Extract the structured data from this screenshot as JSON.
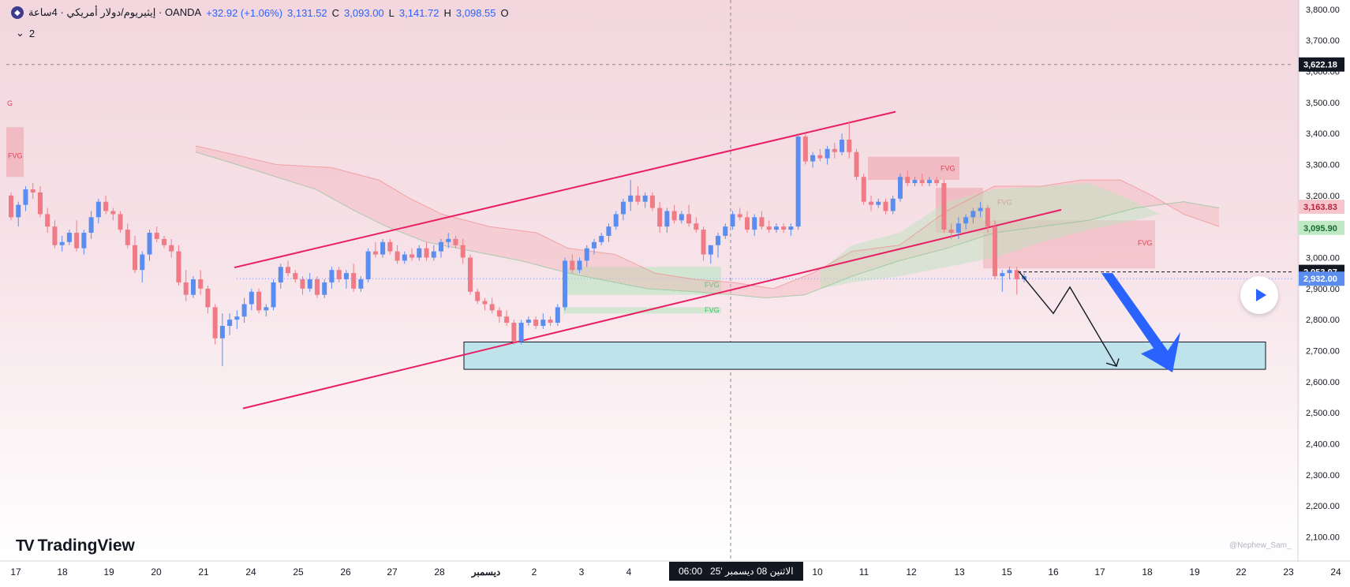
{
  "legend": {
    "symbol_title": "إيثيريوم/دولار أمريكي · 4ساعة · OANDA",
    "coin_icon": "ethereum-icon",
    "change": "+32.92 (+1.06%)",
    "close": "3,131.52",
    "close_key": "C",
    "low": "3,093.00",
    "low_key": "L",
    "high": "3,141.72",
    "high_key": "H",
    "open": "3,098.55",
    "open_key": "O"
  },
  "indicator_toggle": {
    "label": "2",
    "icon": "chevron-down-icon"
  },
  "brand": {
    "logo_mark": "17",
    "name": "TradingView"
  },
  "watermark": "@Nephew_Sam_",
  "crosshair_date": "الاثنين 08 ديسمبر '25",
  "crosshair_time": "06:00",
  "colors": {
    "up": "#5b8def",
    "down": "#ee7b86",
    "channel": "#e91e63",
    "zone_fill": "#bfe3ea",
    "arrow": "#2962ff",
    "cloud_red": "#f4b6b8",
    "cloud_green": "#c9e9cc"
  },
  "chart_data": {
    "type": "candlestick",
    "symbol": "ETH/USD",
    "timeframe": "4h",
    "ylim": [
      2025,
      3830
    ],
    "y_ticks": [
      2100,
      2200,
      2300,
      2400,
      2500,
      2600,
      2700,
      2800,
      2900,
      3000,
      3100,
      3200,
      3300,
      3400,
      3500,
      3600,
      3700,
      3800
    ],
    "y_tick_labels": [
      "2,100.00",
      "2,200.00",
      "2,300.00",
      "2,400.00",
      "2,500.00",
      "2,600.00",
      "2,700.00",
      "2,800.00",
      "2,900.00",
      "3,000.00",
      "3,100.00",
      "3,200.00",
      "3,300.00",
      "3,400.00",
      "3,500.00",
      "3,600.00",
      "3,700.00",
      "3,800.00"
    ],
    "x_labels": [
      "17",
      "18",
      "19",
      "20",
      "21",
      "24",
      "25",
      "26",
      "27",
      "28",
      "ديسمبر",
      "2",
      "3",
      "4",
      "10",
      "11",
      "12",
      "13",
      "15",
      "16",
      "17",
      "18",
      "19",
      "22",
      "23",
      "24"
    ],
    "price_labels": [
      {
        "value": 3622.18,
        "label": "3,622.18",
        "style": "dark"
      },
      {
        "value": 3163.83,
        "label": "3,163.83",
        "style": "red"
      },
      {
        "value": 3095.9,
        "label": "3,095.90",
        "style": "green"
      },
      {
        "value": 2953.97,
        "label": "2,953.97",
        "style": "dark"
      },
      {
        "value": 2932.0,
        "label": "2,932.00",
        "style": "blue"
      }
    ],
    "fvg_labels": [
      "FVG",
      "FVG",
      "FVG",
      "FVG",
      "FVG",
      "FVG"
    ],
    "candles": [
      [
        3200,
        3210,
        3120,
        3130
      ],
      [
        3130,
        3180,
        3100,
        3170
      ],
      [
        3170,
        3230,
        3150,
        3220
      ],
      [
        3220,
        3240,
        3190,
        3210
      ],
      [
        3210,
        3230,
        3130,
        3140
      ],
      [
        3140,
        3160,
        3080,
        3100
      ],
      [
        3100,
        3120,
        3030,
        3040
      ],
      [
        3040,
        3070,
        3020,
        3050
      ],
      [
        3050,
        3090,
        3040,
        3080
      ],
      [
        3080,
        3120,
        3020,
        3030
      ],
      [
        3030,
        3090,
        3010,
        3080
      ],
      [
        3080,
        3150,
        3060,
        3130
      ],
      [
        3130,
        3190,
        3110,
        3180
      ],
      [
        3180,
        3200,
        3140,
        3150
      ],
      [
        3150,
        3160,
        3120,
        3140
      ],
      [
        3140,
        3150,
        3080,
        3090
      ],
      [
        3090,
        3110,
        3030,
        3040
      ],
      [
        3040,
        3070,
        2950,
        2960
      ],
      [
        2960,
        3020,
        2920,
        3010
      ],
      [
        3010,
        3090,
        2990,
        3080
      ],
      [
        3080,
        3100,
        3050,
        3060
      ],
      [
        3060,
        3070,
        3030,
        3040
      ],
      [
        3040,
        3060,
        3000,
        3020
      ],
      [
        3020,
        3040,
        2910,
        2920
      ],
      [
        2920,
        2960,
        2860,
        2880
      ],
      [
        2880,
        2940,
        2870,
        2930
      ],
      [
        2930,
        2960,
        2880,
        2900
      ],
      [
        2900,
        2910,
        2820,
        2840
      ],
      [
        2840,
        2850,
        2720,
        2740
      ],
      [
        2740,
        2820,
        2650,
        2780
      ],
      [
        2780,
        2820,
        2750,
        2800
      ],
      [
        2800,
        2830,
        2770,
        2810
      ],
      [
        2810,
        2870,
        2790,
        2850
      ],
      [
        2850,
        2900,
        2830,
        2890
      ],
      [
        2890,
        2900,
        2820,
        2830
      ],
      [
        2830,
        2850,
        2810,
        2840
      ],
      [
        2840,
        2930,
        2830,
        2920
      ],
      [
        2920,
        2980,
        2900,
        2970
      ],
      [
        2970,
        2990,
        2940,
        2950
      ],
      [
        2950,
        2960,
        2920,
        2930
      ],
      [
        2930,
        2940,
        2880,
        2900
      ],
      [
        2900,
        2950,
        2890,
        2930
      ],
      [
        2930,
        2940,
        2870,
        2880
      ],
      [
        2880,
        2930,
        2870,
        2920
      ],
      [
        2920,
        2970,
        2900,
        2960
      ],
      [
        2960,
        2970,
        2920,
        2930
      ],
      [
        2930,
        2960,
        2900,
        2950
      ],
      [
        2950,
        2980,
        2890,
        2900
      ],
      [
        2900,
        2940,
        2890,
        2930
      ],
      [
        2930,
        3030,
        2920,
        3020
      ],
      [
        3020,
        3050,
        3000,
        3010
      ],
      [
        3010,
        3060,
        3000,
        3050
      ],
      [
        3050,
        3060,
        3010,
        3020
      ],
      [
        3020,
        3040,
        2980,
        2990
      ],
      [
        2990,
        3020,
        2980,
        3010
      ],
      [
        3010,
        3030,
        2990,
        3000
      ],
      [
        3000,
        3040,
        2990,
        3030
      ],
      [
        3030,
        3050,
        2990,
        3000
      ],
      [
        3000,
        3040,
        2990,
        3020
      ],
      [
        3020,
        3060,
        3000,
        3050
      ],
      [
        3050,
        3080,
        3030,
        3060
      ],
      [
        3060,
        3070,
        3030,
        3040
      ],
      [
        3040,
        3060,
        2980,
        3000
      ],
      [
        3000,
        3010,
        2880,
        2890
      ],
      [
        2890,
        2900,
        2850,
        2860
      ],
      [
        2860,
        2870,
        2830,
        2850
      ],
      [
        2850,
        2870,
        2820,
        2830
      ],
      [
        2830,
        2840,
        2790,
        2810
      ],
      [
        2810,
        2830,
        2780,
        2790
      ],
      [
        2790,
        2800,
        2720,
        2730
      ],
      [
        2730,
        2800,
        2720,
        2790
      ],
      [
        2790,
        2810,
        2780,
        2800
      ],
      [
        2800,
        2810,
        2770,
        2780
      ],
      [
        2780,
        2820,
        2770,
        2800
      ],
      [
        2800,
        2810,
        2780,
        2790
      ],
      [
        2790,
        2850,
        2780,
        2840
      ],
      [
        2840,
        3000,
        2830,
        2990
      ],
      [
        2990,
        3010,
        2950,
        2960
      ],
      [
        2960,
        3000,
        2950,
        2990
      ],
      [
        2990,
        3040,
        2970,
        3030
      ],
      [
        3030,
        3060,
        3010,
        3050
      ],
      [
        3050,
        3080,
        3040,
        3070
      ],
      [
        3070,
        3110,
        3050,
        3100
      ],
      [
        3100,
        3150,
        3090,
        3140
      ],
      [
        3140,
        3190,
        3120,
        3180
      ],
      [
        3180,
        3250,
        3150,
        3200
      ],
      [
        3200,
        3230,
        3170,
        3180
      ],
      [
        3180,
        3210,
        3160,
        3200
      ],
      [
        3200,
        3210,
        3150,
        3160
      ],
      [
        3160,
        3180,
        3080,
        3100
      ],
      [
        3100,
        3160,
        3080,
        3150
      ],
      [
        3150,
        3170,
        3110,
        3120
      ],
      [
        3120,
        3150,
        3110,
        3140
      ],
      [
        3140,
        3170,
        3100,
        3110
      ],
      [
        3110,
        3130,
        3080,
        3090
      ],
      [
        3090,
        3100,
        2990,
        3010
      ],
      [
        3010,
        3030,
        2980,
        3040
      ],
      [
        3040,
        3080,
        3000,
        3070
      ],
      [
        3070,
        3110,
        3060,
        3100
      ],
      [
        3100,
        3150,
        3090,
        3140
      ],
      [
        3140,
        3160,
        3120,
        3130
      ],
      [
        3130,
        3150,
        3080,
        3090
      ],
      [
        3090,
        3140,
        3070,
        3130
      ],
      [
        3130,
        3150,
        3090,
        3100
      ],
      [
        3100,
        3120,
        3080,
        3090
      ],
      [
        3090,
        3110,
        3080,
        3100
      ],
      [
        3100,
        3110,
        3080,
        3090
      ],
      [
        3090,
        3110,
        3070,
        3100
      ],
      [
        3100,
        3400,
        3090,
        3390
      ],
      [
        3390,
        3400,
        3300,
        3310
      ],
      [
        3310,
        3340,
        3290,
        3330
      ],
      [
        3330,
        3350,
        3310,
        3320
      ],
      [
        3320,
        3360,
        3300,
        3350
      ],
      [
        3350,
        3370,
        3320,
        3340
      ],
      [
        3340,
        3400,
        3330,
        3380
      ],
      [
        3380,
        3440,
        3320,
        3340
      ],
      [
        3340,
        3350,
        3250,
        3260
      ],
      [
        3260,
        3270,
        3170,
        3180
      ],
      [
        3180,
        3200,
        3150,
        3170
      ],
      [
        3170,
        3190,
        3160,
        3180
      ],
      [
        3180,
        3190,
        3140,
        3150
      ],
      [
        3150,
        3200,
        3140,
        3190
      ],
      [
        3190,
        3270,
        3180,
        3260
      ],
      [
        3260,
        3280,
        3230,
        3240
      ],
      [
        3240,
        3260,
        3230,
        3250
      ],
      [
        3250,
        3270,
        3230,
        3240
      ],
      [
        3240,
        3260,
        3230,
        3250
      ],
      [
        3250,
        3260,
        3230,
        3240
      ],
      [
        3240,
        3250,
        3080,
        3090
      ],
      [
        3090,
        3110,
        3060,
        3080
      ],
      [
        3080,
        3130,
        3060,
        3110
      ],
      [
        3110,
        3140,
        3090,
        3130
      ],
      [
        3130,
        3160,
        3110,
        3150
      ],
      [
        3150,
        3180,
        3130,
        3160
      ],
      [
        3160,
        3170,
        3080,
        3100
      ],
      [
        3100,
        3120,
        2930,
        2940
      ],
      [
        2940,
        2960,
        2890,
        2950
      ],
      [
        2950,
        2970,
        2930,
        2960
      ],
      [
        2960,
        2970,
        2880,
        2930
      ],
      [
        2930,
        2950,
        2920,
        2940
      ]
    ]
  }
}
